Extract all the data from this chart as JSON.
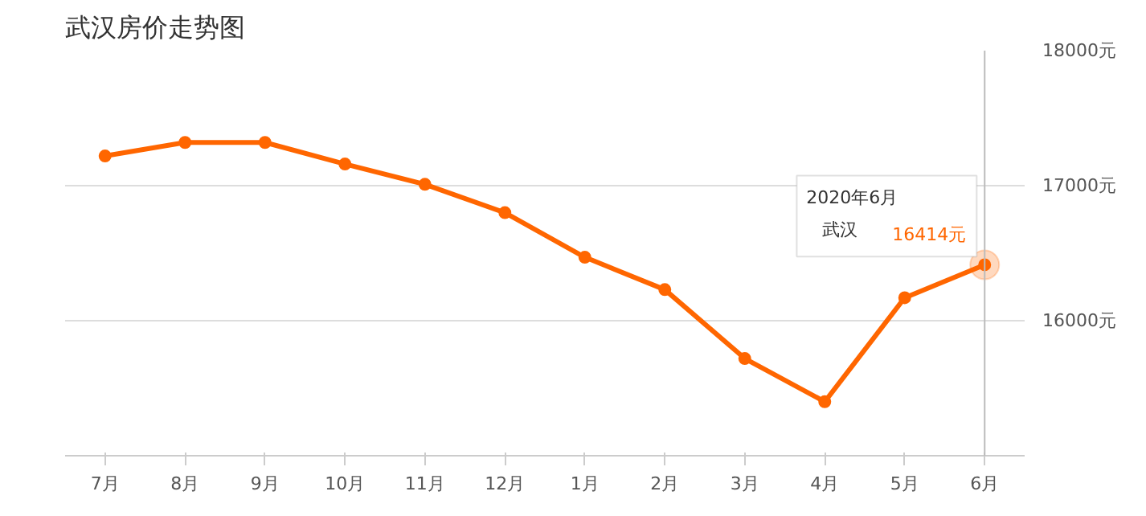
{
  "chart_data": {
    "type": "line",
    "title": "武汉房价走势图",
    "categories": [
      "7月",
      "8月",
      "9月",
      "10月",
      "11月",
      "12月",
      "1月",
      "2月",
      "3月",
      "4月",
      "5月",
      "6月"
    ],
    "series": [
      {
        "name": "武汉",
        "color": "#ff6600",
        "values": [
          17220,
          17320,
          17320,
          17160,
          17010,
          16800,
          16470,
          16230,
          15720,
          15400,
          16170,
          16414
        ],
        "value_labels": [
          null,
          null,
          null,
          null,
          null,
          null,
          null,
          null,
          null,
          null,
          null,
          "16414元"
        ]
      }
    ],
    "ylim": [
      15000,
      18000
    ],
    "yticks": [
      {
        "value": 16000,
        "label": "16000元"
      },
      {
        "value": 17000,
        "label": "17000元"
      },
      {
        "value": 18000,
        "label": "18000元"
      }
    ],
    "grid": "y",
    "marker": "circle",
    "line_style": "solid",
    "ref_lines": [
      {
        "axis": "x",
        "value": "6月",
        "label": null,
        "color": "#bbbbbb"
      }
    ],
    "annotations": [
      "2020年6月"
    ]
  }
}
